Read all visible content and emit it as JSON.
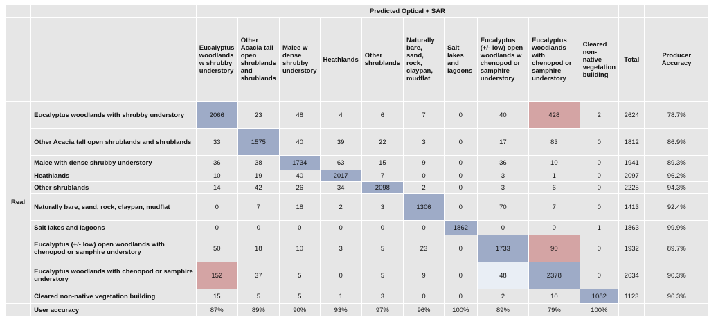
{
  "super_header": "Predicted Optical + SAR",
  "real_label": "Real",
  "columns": [
    "Eucalyptus woodlands w shrubby understory",
    "Other Acacia tall open shrublands and shrublands",
    "Malee w dense shrubby understory",
    "Heathlands",
    "Other shrublands",
    "Naturally bare, sand, rock, claypan, mudflat",
    "Salt lakes and lagoons",
    "Eucalyptus (+/- low) open woodlands w chenopod or samphire understory",
    "Eucalyptus woodlands with chenopod or samphire understory",
    "Cleared non-native vegetation building"
  ],
  "total_label": "Total",
  "producer_label": "Producer Accuracy",
  "rows": [
    {
      "label": "Eucalyptus woodlands with shrubby understory",
      "values": [
        "2066",
        "23",
        "48",
        "4",
        "6",
        "7",
        "0",
        "40",
        "428",
        "2"
      ],
      "total": "2624",
      "pa": "78.7%"
    },
    {
      "label": "Other Acacia tall open shrublands and shrublands",
      "values": [
        "33",
        "1575",
        "40",
        "39",
        "22",
        "3",
        "0",
        "17",
        "83",
        "0"
      ],
      "total": "1812",
      "pa": "86.9%"
    },
    {
      "label": "Malee with dense shrubby understory",
      "values": [
        "36",
        "38",
        "1734",
        "63",
        "15",
        "9",
        "0",
        "36",
        "10",
        "0"
      ],
      "total": "1941",
      "pa": "89.3%"
    },
    {
      "label": "Heathlands",
      "values": [
        "10",
        "19",
        "40",
        "2017",
        "7",
        "0",
        "0",
        "3",
        "1",
        "0"
      ],
      "total": "2097",
      "pa": "96.2%"
    },
    {
      "label": "Other shrublands",
      "values": [
        "14",
        "42",
        "26",
        "34",
        "2098",
        "2",
        "0",
        "3",
        "6",
        "0"
      ],
      "total": "2225",
      "pa": "94.3%"
    },
    {
      "label": "Naturally bare, sand, rock, claypan, mudflat",
      "values": [
        "0",
        "7",
        "18",
        "2",
        "3",
        "1306",
        "0",
        "70",
        "7",
        "0"
      ],
      "total": "1413",
      "pa": "92.4%"
    },
    {
      "label": "Salt lakes and lagoons",
      "values": [
        "0",
        "0",
        "0",
        "0",
        "0",
        "0",
        "1862",
        "0",
        "0",
        "1"
      ],
      "total": "1863",
      "pa": "99.9%"
    },
    {
      "label": "Eucalyptus (+/- low) open woodlands with chenopod or samphire understory",
      "values": [
        "50",
        "18",
        "10",
        "3",
        "5",
        "23",
        "0",
        "1733",
        "90",
        "0"
      ],
      "total": "1932",
      "pa": "89.7%"
    },
    {
      "label": "Eucalyptus woodlands with chenopod or samphire understory",
      "values": [
        "152",
        "37",
        "5",
        "0",
        "5",
        "9",
        "0",
        "48",
        "2378",
        "0"
      ],
      "total": "2634",
      "pa": "90.3%"
    },
    {
      "label": "Cleared non-native vegetation building",
      "values": [
        "15",
        "5",
        "5",
        "1",
        "3",
        "0",
        "0",
        "2",
        "10",
        "1082"
      ],
      "total": "1123",
      "pa": "96.3%"
    }
  ],
  "user_accuracy": {
    "label": "User accuracy",
    "values": [
      "87%",
      "89%",
      "90%",
      "93%",
      "97%",
      "96%",
      "100%",
      "89%",
      "79%",
      "100%"
    ]
  },
  "highlight_colors": {
    "diagonal": "#9eabc7",
    "confusion": "#d4a4a4",
    "light": "#e9eef5"
  }
}
